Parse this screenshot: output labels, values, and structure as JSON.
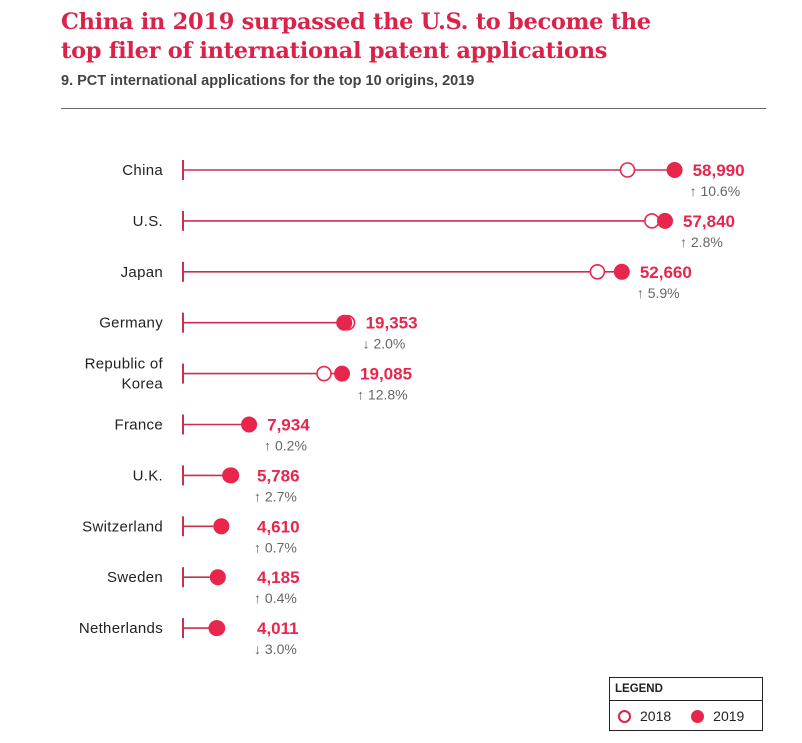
{
  "header": {
    "title_line1": "China in 2019 surpassed the U.S. to become the",
    "title_line2": "top filer of international patent applications",
    "subtitle": "9. PCT international applications for the top 10 origins, 2019"
  },
  "legend": {
    "title": "LEGEND",
    "items": [
      {
        "label": "2018",
        "style": "open"
      },
      {
        "label": "2019",
        "style": "filled"
      }
    ]
  },
  "colors": {
    "accent": "#e8264d",
    "line": "#c9304f",
    "text": "#222222",
    "muted": "#666666"
  },
  "chart_data": {
    "type": "dumbbell",
    "title": "China in 2019 surpassed the U.S. to become the top filer of international patent applications",
    "subtitle": "9. PCT international applications for the top 10 origins, 2019",
    "categories": [
      "China",
      "U.S.",
      "Japan",
      "Germany",
      "Republic of Korea",
      "France",
      "U.K.",
      "Switzerland",
      "Sweden",
      "Netherlands"
    ],
    "category_lines": [
      [
        "China"
      ],
      [
        "U.S."
      ],
      [
        "Japan"
      ],
      [
        "Germany"
      ],
      [
        "Republic of",
        "Korea"
      ],
      [
        "France"
      ],
      [
        "U.K."
      ],
      [
        "Switzerland"
      ],
      [
        "Sweden"
      ],
      [
        "Netherlands"
      ]
    ],
    "series": [
      {
        "name": "2018",
        "values": [
          53340,
          56265,
          49727,
          19748,
          16920,
          7918,
          5634,
          4578,
          4168,
          4135
        ]
      },
      {
        "name": "2019",
        "values": [
          58990,
          57840,
          52660,
          19353,
          19085,
          7934,
          5786,
          4610,
          4185,
          4011
        ]
      }
    ],
    "value_labels": [
      "58,990",
      "57,840",
      "52,660",
      "19,353",
      "19,085",
      "7,934",
      "5,786",
      "4,610",
      "4,185",
      "4,011"
    ],
    "growth": [
      {
        "dir": "up",
        "text": "10.6%"
      },
      {
        "dir": "up",
        "text": "2.8%"
      },
      {
        "dir": "up",
        "text": "5.9%"
      },
      {
        "dir": "down",
        "text": "2.0%"
      },
      {
        "dir": "up",
        "text": "12.8%"
      },
      {
        "dir": "up",
        "text": "0.2%"
      },
      {
        "dir": "up",
        "text": "2.7%"
      },
      {
        "dir": "up",
        "text": "0.7%"
      },
      {
        "dir": "up",
        "text": "0.4%"
      },
      {
        "dir": "down",
        "text": "3.0%"
      }
    ],
    "xlim": [
      0,
      60000
    ],
    "grid": false,
    "legend_position": "bottom-right"
  }
}
